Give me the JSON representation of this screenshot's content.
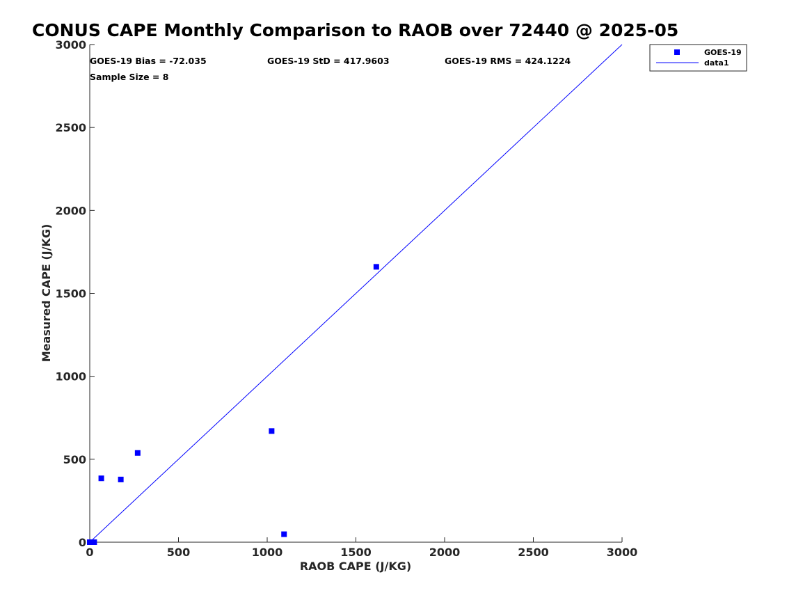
{
  "chart_data": {
    "type": "scatter",
    "title": "CONUS CAPE Monthly Comparison to RAOB over 72440 @ 2025-05",
    "xlabel": "RAOB CAPE (J/KG)",
    "ylabel": "Measured CAPE (J/KG)",
    "xlim": [
      0,
      3000
    ],
    "ylim": [
      0,
      3000
    ],
    "xticks": [
      "0",
      "500",
      "1000",
      "1500",
      "2000",
      "2500",
      "3000"
    ],
    "yticks": [
      "0",
      "500",
      "1000",
      "1500",
      "2000",
      "2500",
      "3000"
    ],
    "xtick_values": [
      0,
      500,
      1000,
      1500,
      2000,
      2500,
      3000
    ],
    "ytick_values": [
      0,
      500,
      1000,
      1500,
      2000,
      2500,
      3000
    ],
    "grid": false,
    "series": [
      {
        "name": "GOES-19",
        "kind": "scatter",
        "marker": "square",
        "color": "#0000ff",
        "x": [
          0,
          25,
          65,
          175,
          270,
          1025,
          1095,
          1615
        ],
        "y": [
          0,
          0,
          385,
          378,
          538,
          670,
          48,
          1660
        ]
      },
      {
        "name": "data1",
        "kind": "line",
        "color": "#0000ff",
        "x": [
          0,
          3000
        ],
        "y": [
          0,
          3000
        ]
      }
    ],
    "annotations": {
      "bias": "GOES-19 Bias = -72.035",
      "std": "GOES-19 StD = 417.9603",
      "rms": "GOES-19 RMS = 424.1224",
      "sample": "Sample Size = 8"
    },
    "legend": {
      "position": "top-right-outside",
      "entries": [
        "GOES-19",
        "data1"
      ]
    }
  }
}
